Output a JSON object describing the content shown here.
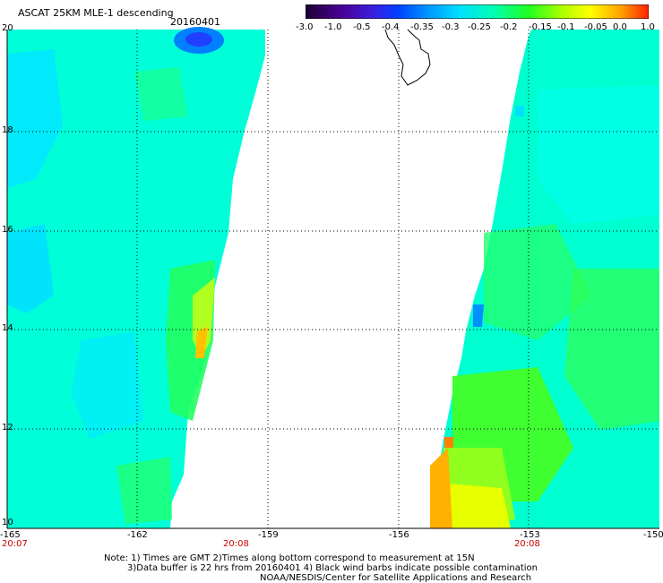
{
  "header": {
    "title": "ASCAT 25KM MLE-1 descending",
    "date": "20160401"
  },
  "colorbar": {
    "labels": [
      "-3.0",
      "-1.0",
      "-0.5",
      "-0.4",
      "-0.35",
      "-0.3",
      "-0.25",
      "-0.2",
      "-0.15",
      "-0.1",
      "-0.05",
      "0.0",
      "1.0"
    ],
    "colors": [
      "#1a0033",
      "#5a00b4",
      "#2020ff",
      "#0090ff",
      "#00d8ff",
      "#00ffc8",
      "#00ff78",
      "#40ff00",
      "#c8ff00",
      "#ffff00",
      "#ffa000",
      "#ff3000"
    ]
  },
  "map": {
    "lat_labels": [
      "20",
      "18",
      "16",
      "14",
      "12",
      "10"
    ],
    "lon_labels": [
      "-165",
      "-162",
      "-159",
      "-156",
      "-153",
      "-150"
    ],
    "times": [
      "20:07",
      "20:08",
      "20:08"
    ]
  },
  "footer": {
    "line1": "Note: 1) Times are GMT 2)Times along bottom correspond to measurement at 15N",
    "line2": "3)Data buffer is 22 hrs from 20160401 4) Black wind barbs indicate possible contamination",
    "line3": "NOAA/NESDIS/Center for Satellite Applications and Research"
  }
}
